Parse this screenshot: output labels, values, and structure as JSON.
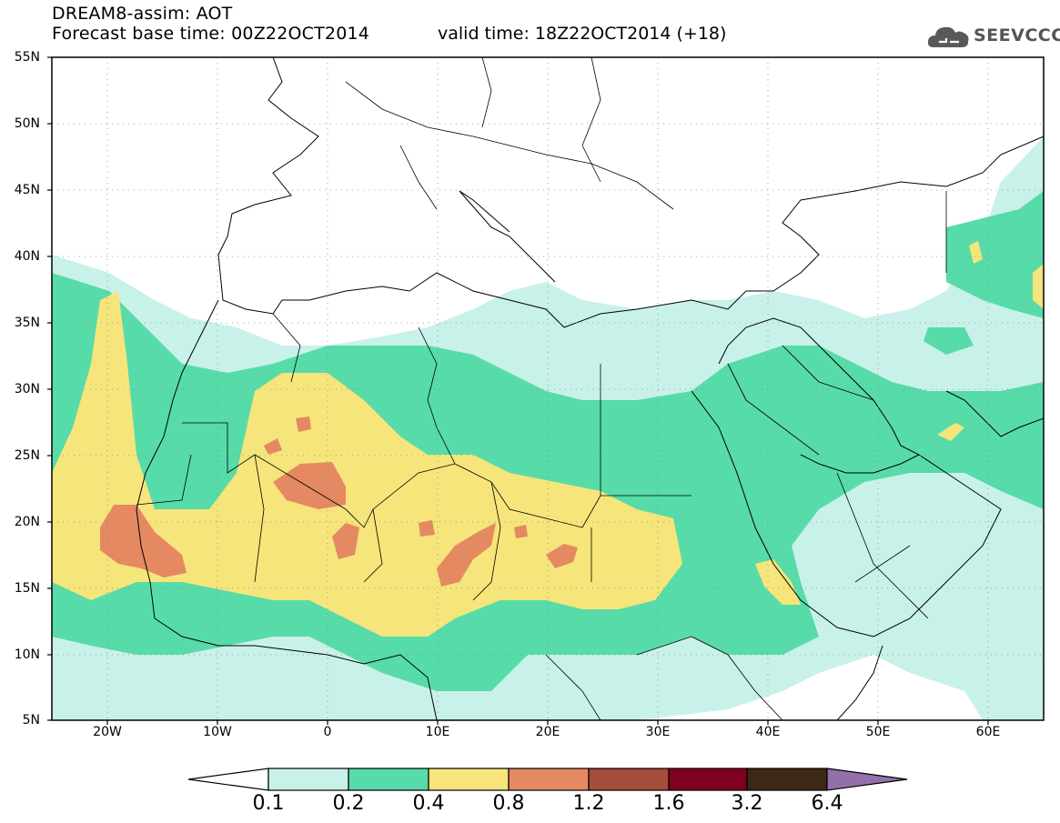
{
  "header": {
    "title": "DREAM8-assim: AOT",
    "base_time": "Forecast base time: 00Z22OCT2014",
    "valid_time": "valid time: 18Z22OCT2014 (+18)"
  },
  "logo": {
    "text": "SEEVCCC",
    "icon": "cloud-icon",
    "color": "#595959"
  },
  "map": {
    "lat_labels": [
      "55N",
      "50N",
      "45N",
      "40N",
      "35N",
      "30N",
      "25N",
      "20N",
      "15N",
      "10N",
      "5N"
    ],
    "lon_labels": [
      "20W",
      "10W",
      "0",
      "10E",
      "20E",
      "30E",
      "40E",
      "50E",
      "60E"
    ],
    "lat_range": [
      5,
      55
    ],
    "lon_range": [
      -25,
      65
    ],
    "grid": "dotted"
  },
  "legend": {
    "units_levels": [
      "0.1",
      "0.2",
      "0.4",
      "0.8",
      "1.2",
      "1.6",
      "3.2",
      "6.4"
    ],
    "colors": [
      "#ffffff",
      "#c8f1ea",
      "#57dba9",
      "#f6e57a",
      "#e48962",
      "#a54d3b",
      "#800020",
      "#3d2716",
      "#9270a9"
    ]
  }
}
